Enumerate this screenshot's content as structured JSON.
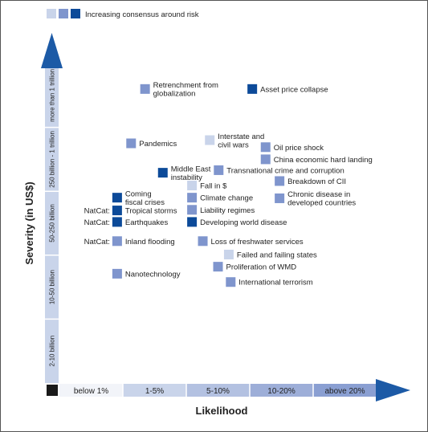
{
  "colors": {
    "level_1": "#c9d4ea",
    "level_2": "#7f95cd",
    "level_3": "#0c4a99",
    "axis_arrow": "#1c5aa6",
    "grid_band": "#ffffff",
    "corner": "#1a1a1a"
  },
  "chart_data": {
    "type": "scatter",
    "title": "",
    "xlabel": "Likelihood",
    "ylabel": "Severity (in US$)",
    "legend": {
      "label": "Increasing consensus around risk",
      "placement": "top-left",
      "levels": [
        1,
        2,
        3
      ]
    },
    "x_categories": [
      "below 1%",
      "1-5%",
      "5-10%",
      "10-20%",
      "above 20%"
    ],
    "y_categories": [
      "2-10 billion",
      "10-50 billion",
      "50-250 billion",
      "250 billion - 1 trillion",
      "more than 1 trillion"
    ],
    "points": [
      {
        "label": "Retrenchment from globalization",
        "lines": [
          "Retrenchment from",
          "globalization"
        ],
        "x": 1.35,
        "y": 4.6,
        "consensus": 2,
        "prefix": ""
      },
      {
        "label": "Asset price collapse",
        "lines": [
          "Asset price collapse"
        ],
        "x": 3.04,
        "y": 4.6,
        "consensus": 3,
        "prefix": ""
      },
      {
        "label": "Pandemics",
        "lines": [
          "Pandemics"
        ],
        "x": 1.13,
        "y": 3.75,
        "consensus": 2,
        "prefix": ""
      },
      {
        "label": "Interstate and civil wars",
        "lines": [
          "Interstate and",
          "civil wars"
        ],
        "x": 2.37,
        "y": 3.8,
        "consensus": 1,
        "prefix": ""
      },
      {
        "label": "Oil price shock",
        "lines": [
          "Oil price shock"
        ],
        "x": 3.25,
        "y": 3.69,
        "consensus": 2,
        "prefix": ""
      },
      {
        "label": "China economic hard landing",
        "lines": [
          "China economic hard landing"
        ],
        "x": 3.25,
        "y": 3.5,
        "consensus": 2,
        "prefix": ""
      },
      {
        "label": "Middle East instability",
        "lines": [
          "Middle East",
          "instability"
        ],
        "x": 1.63,
        "y": 3.29,
        "consensus": 3,
        "prefix": ""
      },
      {
        "label": "Transnational crime and corruption",
        "lines": [
          "Transnational crime and corruption"
        ],
        "x": 2.51,
        "y": 3.33,
        "consensus": 2,
        "prefix": ""
      },
      {
        "label": "Breakdown of CII",
        "lines": [
          "Breakdown of CII"
        ],
        "x": 3.47,
        "y": 3.16,
        "consensus": 2,
        "prefix": ""
      },
      {
        "label": "Fall in $",
        "lines": [
          "Fall in $"
        ],
        "x": 2.09,
        "y": 3.09,
        "consensus": 1,
        "prefix": ""
      },
      {
        "label": "Climate change",
        "lines": [
          "Climate change"
        ],
        "x": 2.09,
        "y": 2.9,
        "consensus": 2,
        "prefix": ""
      },
      {
        "label": "Liability regimes",
        "lines": [
          "Liability regimes"
        ],
        "x": 2.09,
        "y": 2.71,
        "consensus": 2,
        "prefix": ""
      },
      {
        "label": "Developing world disease",
        "lines": [
          "Developing world disease"
        ],
        "x": 2.09,
        "y": 2.52,
        "consensus": 3,
        "prefix": ""
      },
      {
        "label": "Chronic disease in developed countries",
        "lines": [
          "Chronic disease in",
          "developed countries"
        ],
        "x": 3.47,
        "y": 2.89,
        "consensus": 2,
        "prefix": ""
      },
      {
        "label": "Coming fiscal crises",
        "lines": [
          "Coming",
          "fiscal crises"
        ],
        "x": 0.91,
        "y": 2.9,
        "consensus": 3,
        "prefix": ""
      },
      {
        "label": "Tropical storms",
        "lines": [
          "Tropical storms"
        ],
        "x": 0.91,
        "y": 2.7,
        "consensus": 3,
        "prefix": "NatCat:"
      },
      {
        "label": "Earthquakes",
        "lines": [
          "Earthquakes"
        ],
        "x": 0.91,
        "y": 2.52,
        "consensus": 3,
        "prefix": "NatCat:"
      },
      {
        "label": "Inland flooding",
        "lines": [
          "Inland flooding"
        ],
        "x": 0.91,
        "y": 2.22,
        "consensus": 2,
        "prefix": "NatCat:"
      },
      {
        "label": "Loss of freshwater services",
        "lines": [
          "Loss of freshwater services"
        ],
        "x": 2.26,
        "y": 2.22,
        "consensus": 2,
        "prefix": ""
      },
      {
        "label": "Failed and failing states",
        "lines": [
          "Failed and failing states"
        ],
        "x": 2.67,
        "y": 2.01,
        "consensus": 1,
        "prefix": ""
      },
      {
        "label": "Proliferation of WMD",
        "lines": [
          "Proliferation of WMD"
        ],
        "x": 2.5,
        "y": 1.82,
        "consensus": 2,
        "prefix": ""
      },
      {
        "label": "Nanotechnology",
        "lines": [
          "Nanotechnology"
        ],
        "x": 0.91,
        "y": 1.71,
        "consensus": 2,
        "prefix": ""
      },
      {
        "label": "International terrorism",
        "lines": [
          "International terrorism"
        ],
        "x": 2.7,
        "y": 1.58,
        "consensus": 2,
        "prefix": ""
      }
    ]
  }
}
